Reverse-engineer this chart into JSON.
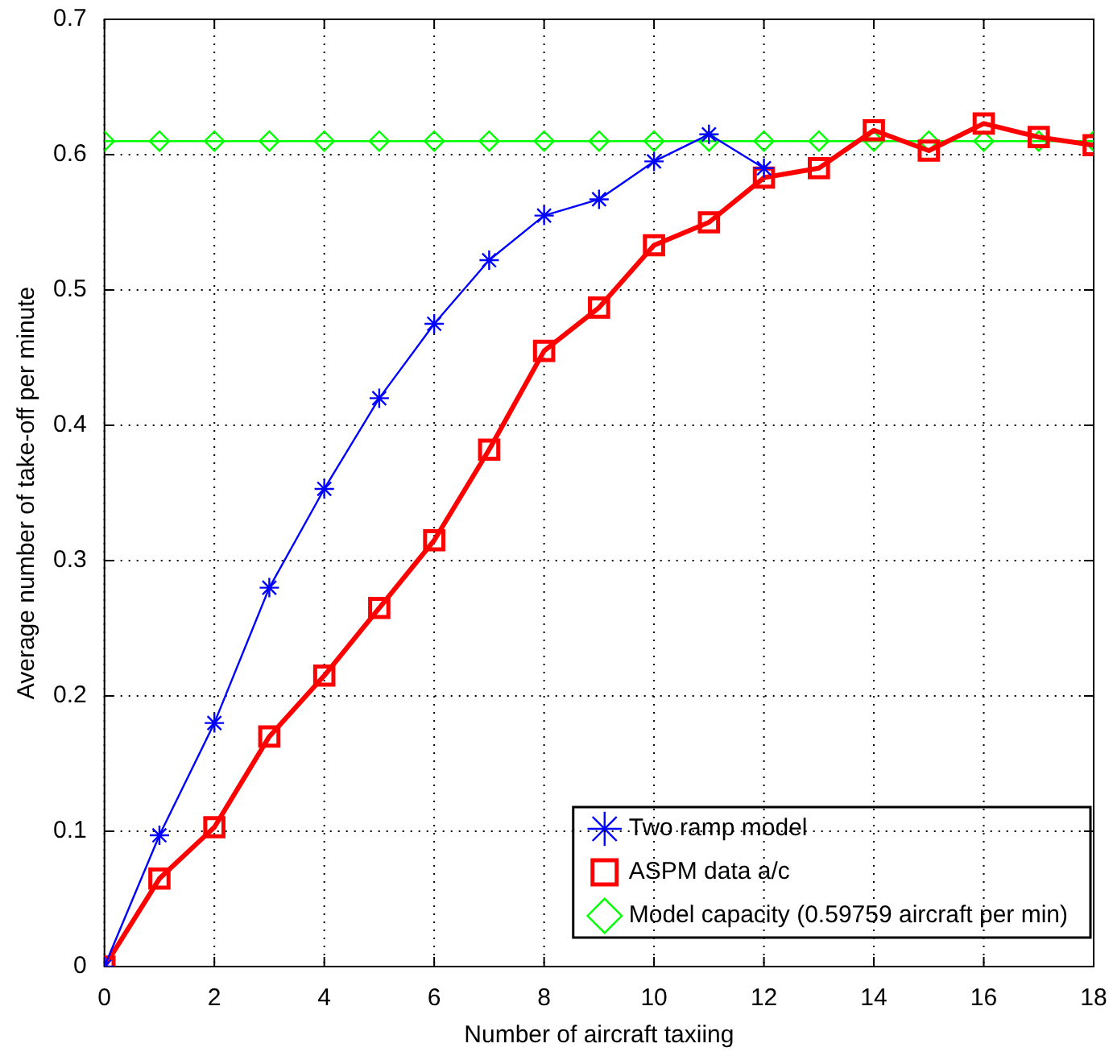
{
  "chart_data": {
    "type": "line",
    "xlabel": "Number of aircraft taxiing",
    "ylabel": "Average number of take-off per minute",
    "x": [
      0,
      1,
      2,
      3,
      4,
      5,
      6,
      7,
      8,
      9,
      10,
      11,
      12,
      13,
      14,
      15,
      16,
      17,
      18
    ],
    "series": [
      {
        "name": "Two ramp model",
        "color": "#0000ff",
        "marker": "cross",
        "values": [
          0,
          0.097,
          0.18,
          0.28,
          0.353,
          0.42,
          0.475,
          0.522,
          0.555,
          0.567,
          0.595,
          0.615,
          0.59,
          null,
          null,
          null,
          null,
          null,
          null
        ]
      },
      {
        "name": "ASPM data a/c",
        "color": "#ff0000",
        "marker": "square",
        "values": [
          0,
          0.065,
          0.103,
          0.17,
          0.215,
          0.265,
          0.315,
          0.382,
          0.455,
          0.487,
          0.533,
          0.55,
          0.583,
          0.59,
          0.618,
          0.603,
          0.623,
          0.613,
          0.607
        ]
      },
      {
        "name": "Model capacity (0.59759 aircraft per min)",
        "color": "#00ff00",
        "marker": "diamond",
        "values": [
          0.61,
          0.61,
          0.61,
          0.61,
          0.61,
          0.61,
          0.61,
          0.61,
          0.61,
          0.61,
          0.61,
          0.61,
          0.61,
          0.61,
          0.61,
          0.61,
          0.61,
          0.61,
          0.61
        ]
      }
    ],
    "xlim": [
      0,
      18
    ],
    "xticks": [
      0,
      2,
      4,
      6,
      8,
      10,
      12,
      14,
      16,
      18
    ],
    "ylim": [
      0,
      0.7
    ],
    "yticks": [
      0,
      0.1,
      0.2,
      0.3,
      0.4,
      0.5,
      0.6,
      0.7
    ],
    "grid": true,
    "legend": "bottom right"
  }
}
